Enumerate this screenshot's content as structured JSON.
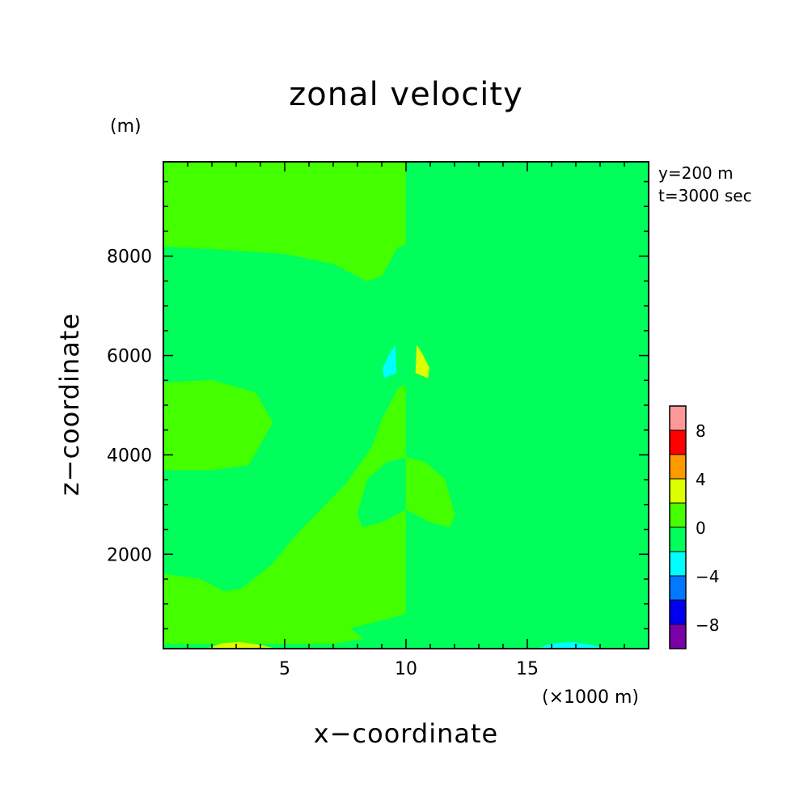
{
  "chart_data": {
    "type": "heatmap",
    "title": "zonal velocity",
    "xlabel": "x−coordinate",
    "ylabel": "z−coordinate",
    "x_unit": "(×1000 m)",
    "y_unit": "(m)",
    "annotations": [
      "y=200 m",
      "t=3000 sec"
    ],
    "xlim": [
      0,
      20
    ],
    "ylim": [
      100,
      9900
    ],
    "x_ticks": [
      5,
      10,
      15
    ],
    "x_tick_labels": [
      "5",
      "10",
      "15"
    ],
    "y_ticks": [
      2000,
      4000,
      6000,
      8000
    ],
    "y_tick_labels": [
      "2000",
      "4000",
      "6000",
      "8000"
    ],
    "colorbar": {
      "levels": [
        -10,
        -8,
        -6,
        -4,
        -2,
        0,
        2,
        4,
        6,
        8,
        10
      ],
      "tick_labels": [
        "−8",
        "−4",
        "0",
        "4",
        "8"
      ],
      "tick_values": [
        -8,
        -4,
        0,
        4,
        8
      ],
      "colors": [
        "#7a00a8",
        "#0000ee",
        "#0078ff",
        "#00ffff",
        "#00ff5a",
        "#44ff00",
        "#ddff00",
        "#ff9900",
        "#ff0000",
        "#ff9999"
      ]
    },
    "regions": [
      {
        "name": "top band, 0 to 2 (left of x=10)",
        "level": "0 to 2",
        "points": [
          [
            0,
            9900
          ],
          [
            10,
            9900
          ],
          [
            10,
            8250
          ],
          [
            9.6,
            8150
          ],
          [
            9,
            7600
          ],
          [
            8.4,
            7500
          ],
          [
            7,
            7850
          ],
          [
            5,
            8050
          ],
          [
            2,
            8150
          ],
          [
            0,
            8200
          ]
        ]
      },
      {
        "name": "top band, -2 to 0 (right of x=10)",
        "level": "-2 to 0",
        "points": [
          [
            10,
            9900
          ],
          [
            20,
            9900
          ],
          [
            20,
            8200
          ],
          [
            18,
            8150
          ],
          [
            15,
            8050
          ],
          [
            13,
            7850
          ],
          [
            11.6,
            7500
          ],
          [
            11,
            7600
          ],
          [
            10.4,
            8150
          ],
          [
            10,
            8250
          ]
        ]
      },
      {
        "name": "left side, 0 to 2",
        "level": "0 to 2",
        "points": [
          [
            0,
            5450
          ],
          [
            2,
            5500
          ],
          [
            3.8,
            5250
          ],
          [
            4.5,
            4650
          ],
          [
            3.5,
            3800
          ],
          [
            2,
            3700
          ],
          [
            0,
            3700
          ]
        ]
      },
      {
        "name": "center left, 0 to 2",
        "level": "0 to 2",
        "points": [
          [
            10,
            5400
          ],
          [
            9.7,
            5350
          ],
          [
            9,
            4700
          ],
          [
            8.6,
            4150
          ],
          [
            7.5,
            3400
          ],
          [
            5.5,
            2400
          ],
          [
            4.5,
            1800
          ],
          [
            3.2,
            1300
          ],
          [
            2.5,
            1250
          ],
          [
            1.5,
            1500
          ],
          [
            0,
            1600
          ],
          [
            0,
            200
          ],
          [
            7,
            200
          ],
          [
            8.2,
            300
          ],
          [
            7.5,
            600
          ],
          [
            6.5,
            1300
          ],
          [
            5.5,
            1250
          ],
          [
            4.5,
            1050
          ],
          [
            4.4,
            600
          ],
          [
            6.5,
            400
          ],
          [
            7.6,
            500
          ],
          [
            9.2,
            700
          ],
          [
            10,
            800
          ]
        ]
      },
      {
        "name": "center right, -2 to 0",
        "level": "-2 to 0",
        "points": [
          [
            10,
            5400
          ],
          [
            10.3,
            5350
          ],
          [
            11,
            4700
          ],
          [
            11.4,
            4150
          ],
          [
            12.5,
            3400
          ],
          [
            14.5,
            2400
          ],
          [
            15.5,
            1800
          ],
          [
            16.8,
            1300
          ],
          [
            17.5,
            1250
          ],
          [
            18.5,
            1500
          ],
          [
            20,
            1600
          ],
          [
            20,
            200
          ],
          [
            13,
            200
          ],
          [
            11.8,
            300
          ],
          [
            12.5,
            600
          ],
          [
            13.5,
            1300
          ],
          [
            14.5,
            1250
          ],
          [
            15.5,
            1050
          ],
          [
            15.6,
            600
          ],
          [
            13.5,
            400
          ],
          [
            12.4,
            500
          ],
          [
            10.8,
            700
          ],
          [
            10,
            800
          ]
        ]
      },
      {
        "name": "small lobe, -2 to 0",
        "level": "-2 to 0",
        "points": [
          [
            10,
            3950
          ],
          [
            9.2,
            3850
          ],
          [
            8.4,
            3500
          ],
          [
            8,
            2800
          ],
          [
            8.2,
            2550
          ],
          [
            9,
            2650
          ],
          [
            10,
            2900
          ]
        ]
      },
      {
        "name": "small lobe, 0 to 2",
        "level": "0 to 2",
        "points": [
          [
            10,
            3950
          ],
          [
            10.8,
            3850
          ],
          [
            11.6,
            3500
          ],
          [
            12,
            2800
          ],
          [
            11.8,
            2550
          ],
          [
            11,
            2650
          ],
          [
            10,
            2900
          ]
        ]
      },
      {
        "name": "cell, -4 to -2",
        "level": "-4 to -2",
        "points": [
          [
            9.55,
            6200
          ],
          [
            9.35,
            6050
          ],
          [
            9.05,
            5750
          ],
          [
            9.1,
            5550
          ],
          [
            9.6,
            5650
          ]
        ]
      },
      {
        "name": "cell, 2 to 4",
        "level": "2 to 4",
        "points": [
          [
            10.45,
            6200
          ],
          [
            10.65,
            6050
          ],
          [
            10.95,
            5750
          ],
          [
            10.9,
            5550
          ],
          [
            10.4,
            5650
          ]
        ]
      },
      {
        "name": "bottom cell, 2 to 4",
        "level": "2 to 4",
        "points": [
          [
            1.8,
            100
          ],
          [
            2.4,
            200
          ],
          [
            3.1,
            230
          ],
          [
            4.0,
            170
          ],
          [
            4.6,
            100
          ]
        ]
      },
      {
        "name": "bottom cell, -4 to -2",
        "level": "-4 to -2",
        "points": [
          [
            15.4,
            100
          ],
          [
            16.0,
            200
          ],
          [
            16.9,
            230
          ],
          [
            17.6,
            170
          ],
          [
            18.2,
            100
          ]
        ]
      }
    ]
  }
}
